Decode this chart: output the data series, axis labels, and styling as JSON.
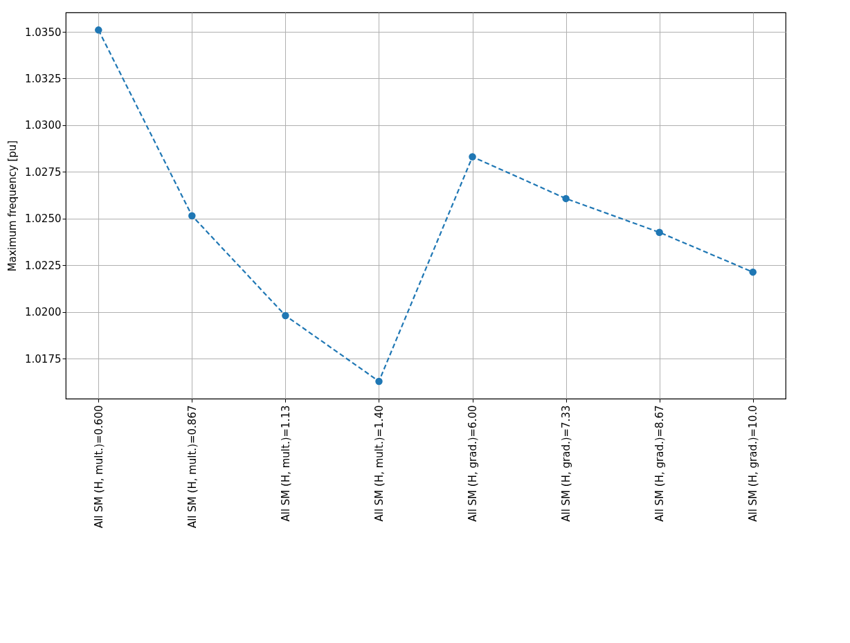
{
  "chart_data": {
    "type": "line",
    "ylabel": "Maximum frequency [pu]",
    "categories": [
      "All SM (H, mult.)=0.600",
      "All SM (H, mult.)=0.867",
      "All SM (H, mult.)=1.13",
      "All SM (H, mult.)=1.40",
      "All SM (H, grad.)=6.00",
      "All SM (H, grad.)=7.33",
      "All SM (H, grad.)=8.67",
      "All SM (H, grad.)=10.0"
    ],
    "series": [
      {
        "color": "#1f77b4",
        "values": [
          1.0351,
          1.02515,
          1.0198,
          1.01628,
          1.02831,
          1.02607,
          1.02426,
          1.02213
        ]
      }
    ],
    "ylim": [
      1.01535,
      1.03604
    ],
    "yticks": [
      {
        "value": 1.0175,
        "label": "1.0175"
      },
      {
        "value": 1.02,
        "label": "1.0200"
      },
      {
        "value": 1.0225,
        "label": "1.0225"
      },
      {
        "value": 1.025,
        "label": "1.0250"
      },
      {
        "value": 1.0275,
        "label": "1.0275"
      },
      {
        "value": 1.03,
        "label": "1.0300"
      },
      {
        "value": 1.0325,
        "label": "1.0325"
      },
      {
        "value": 1.035,
        "label": "1.0350"
      }
    ],
    "grid": true,
    "marker": "circle",
    "line_style": "dashed"
  }
}
